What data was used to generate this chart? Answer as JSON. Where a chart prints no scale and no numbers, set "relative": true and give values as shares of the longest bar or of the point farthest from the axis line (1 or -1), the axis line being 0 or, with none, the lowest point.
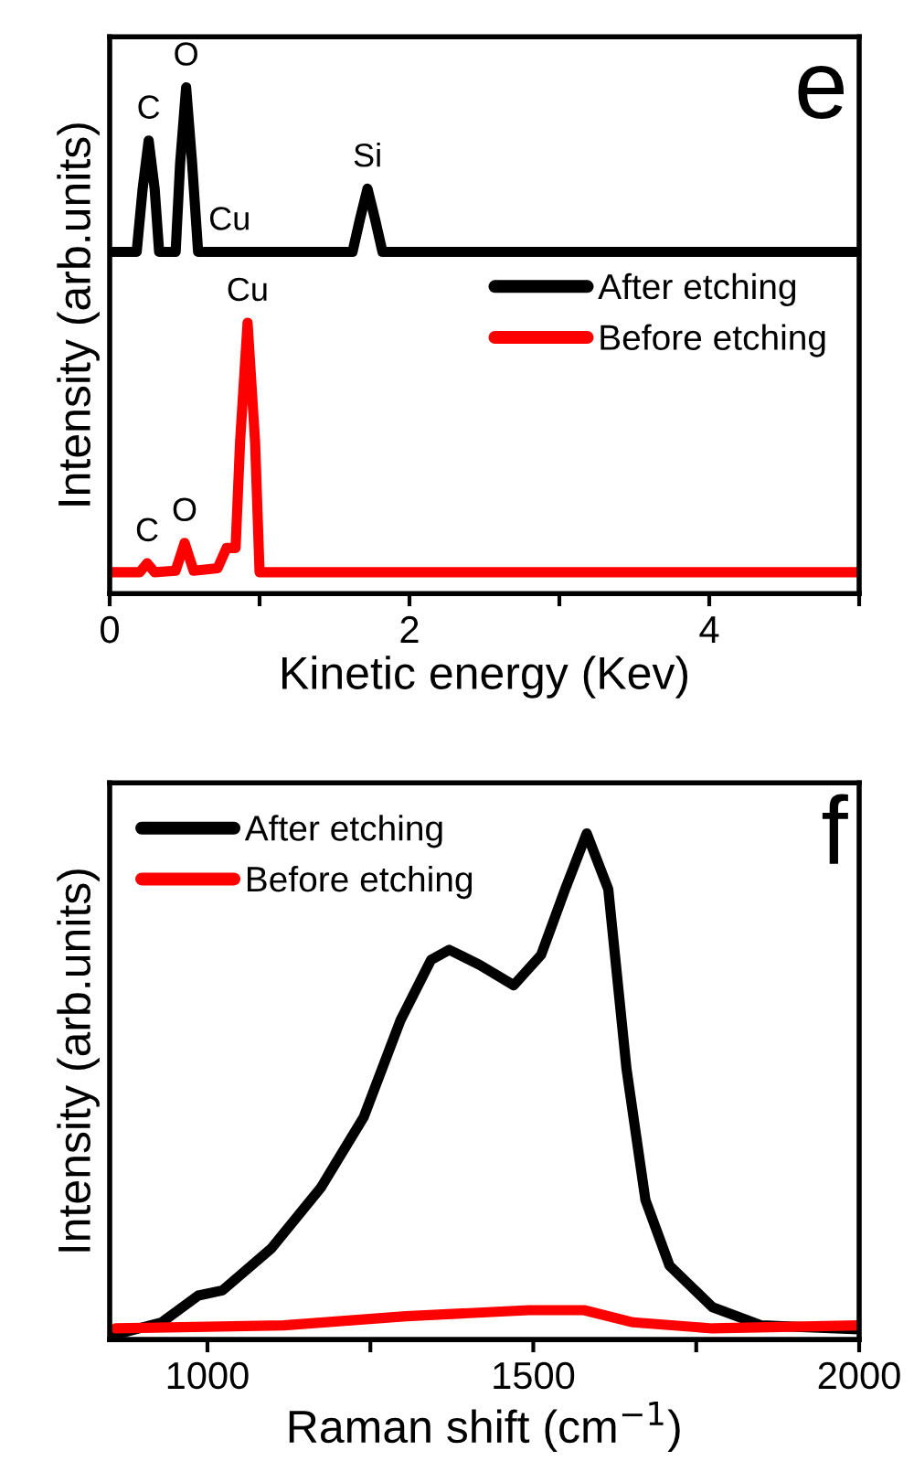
{
  "chart_data": [
    {
      "type": "line",
      "xlabel": "Kinetic energy (Kev)",
      "ylabel": "Intensity (arb.units)",
      "relative": true,
      "xlim": [
        0,
        5
      ],
      "xticks": [
        0,
        {
          "value": 1,
          "label": null
        },
        2,
        {
          "value": 3,
          "label": null
        },
        4,
        {
          "value": 5,
          "label": null
        }
      ],
      "legend": "center right",
      "grid": false,
      "marker": "none",
      "line_style": "solid",
      "annotations": [
        {
          "text": "C",
          "x": 0.26,
          "y": 0.895
        },
        {
          "text": "O",
          "x": 0.51,
          "y": 1.0
        },
        {
          "text": "Cu",
          "x": 0.8,
          "y": 0.675
        },
        {
          "text": "Si",
          "x": 1.72,
          "y": 0.8
        },
        {
          "text": "Cu",
          "x": 0.92,
          "y": 0.535
        },
        {
          "text": "C",
          "x": 0.25,
          "y": 0.06
        },
        {
          "text": "O",
          "x": 0.5,
          "y": 0.1
        },
        "e"
      ],
      "series": [
        {
          "name": "After etching",
          "color": "#000000",
          "x": [
            0,
            0.18,
            0.22,
            0.26,
            0.3,
            0.33,
            0.44,
            0.47,
            0.51,
            0.55,
            0.59,
            1.62,
            1.67,
            1.72,
            1.77,
            1.82,
            5
          ],
          "values": [
            0.675,
            0.675,
            0.8,
            0.895,
            0.8,
            0.675,
            0.675,
            0.85,
            1.0,
            0.85,
            0.675,
            0.675,
            0.74,
            0.8,
            0.74,
            0.675,
            0.675
          ]
        },
        {
          "name": "Before etching",
          "color": "#ff0000",
          "x": [
            0,
            0.2,
            0.25,
            0.3,
            0.44,
            0.5,
            0.56,
            0.72,
            0.78,
            0.84,
            0.87,
            0.92,
            0.97,
            1.0,
            5
          ],
          "values": [
            0.042,
            0.042,
            0.06,
            0.042,
            0.045,
            0.1,
            0.045,
            0.05,
            0.09,
            0.09,
            0.3,
            0.535,
            0.3,
            0.042,
            0.042
          ]
        }
      ]
    },
    {
      "type": "line",
      "xlabel": "Raman shift (cm$^{−1}$)",
      "ylabel": "Intensity (arb.units)",
      "relative": true,
      "xlim": [
        850,
        2000
      ],
      "xticks": [
        1000,
        {
          "value": 1250,
          "label": null
        },
        1500,
        {
          "value": 1750,
          "label": null
        },
        2000
      ],
      "legend": "top left",
      "grid": false,
      "marker": "none",
      "line_style": "solid",
      "annotations": [
        "f"
      ],
      "series": [
        {
          "name": "After etching",
          "color": "#000000",
          "x": [
            859,
            930,
            986,
            1023,
            1098,
            1174,
            1240,
            1296,
            1343,
            1371,
            1418,
            1470,
            1512,
            1549,
            1582,
            1615,
            1643,
            1672,
            1709,
            1775,
            1850,
            2000
          ],
          "values": [
            0.01,
            0.034,
            0.087,
            0.097,
            0.18,
            0.3,
            0.44,
            0.63,
            0.75,
            0.77,
            0.74,
            0.7,
            0.76,
            0.89,
            1.0,
            0.89,
            0.535,
            0.276,
            0.146,
            0.064,
            0.028,
            0.02
          ]
        },
        {
          "name": "Before etching",
          "color": "#ff0000",
          "x": [
            859,
            1117,
            1305,
            1493,
            1578,
            1653,
            1775,
            2000
          ],
          "values": [
            0.022,
            0.028,
            0.046,
            0.058,
            0.058,
            0.034,
            0.022,
            0.028
          ]
        }
      ]
    }
  ]
}
